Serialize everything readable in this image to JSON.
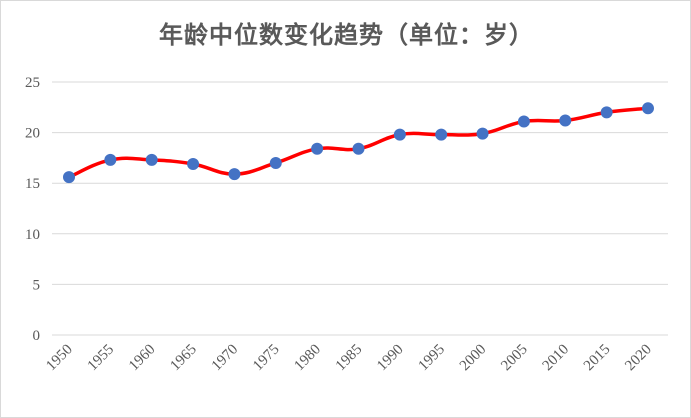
{
  "chart_data": {
    "type": "line",
    "title": "年龄中位数变化趋势（单位：岁）",
    "xlabel": "",
    "ylabel": "",
    "categories": [
      "1950",
      "1955",
      "1960",
      "1965",
      "1970",
      "1975",
      "1980",
      "1985",
      "1990",
      "1995",
      "2000",
      "2005",
      "2010",
      "2015",
      "2020"
    ],
    "series": [
      {
        "values": [
          15.6,
          17.3,
          17.3,
          16.9,
          15.9,
          17.0,
          18.4,
          18.4,
          19.8,
          19.8,
          19.9,
          21.1,
          21.2,
          22.0,
          22.4
        ]
      }
    ],
    "ylim": [
      0,
      25
    ],
    "yticks": [
      "0",
      "5",
      "10",
      "15",
      "20",
      "25"
    ],
    "grid": "horizontal",
    "legend": "none",
    "colors": {
      "line": "#ff0000",
      "marker": "#4472c4",
      "grid": "#d9d9d9",
      "text": "#595959"
    }
  }
}
